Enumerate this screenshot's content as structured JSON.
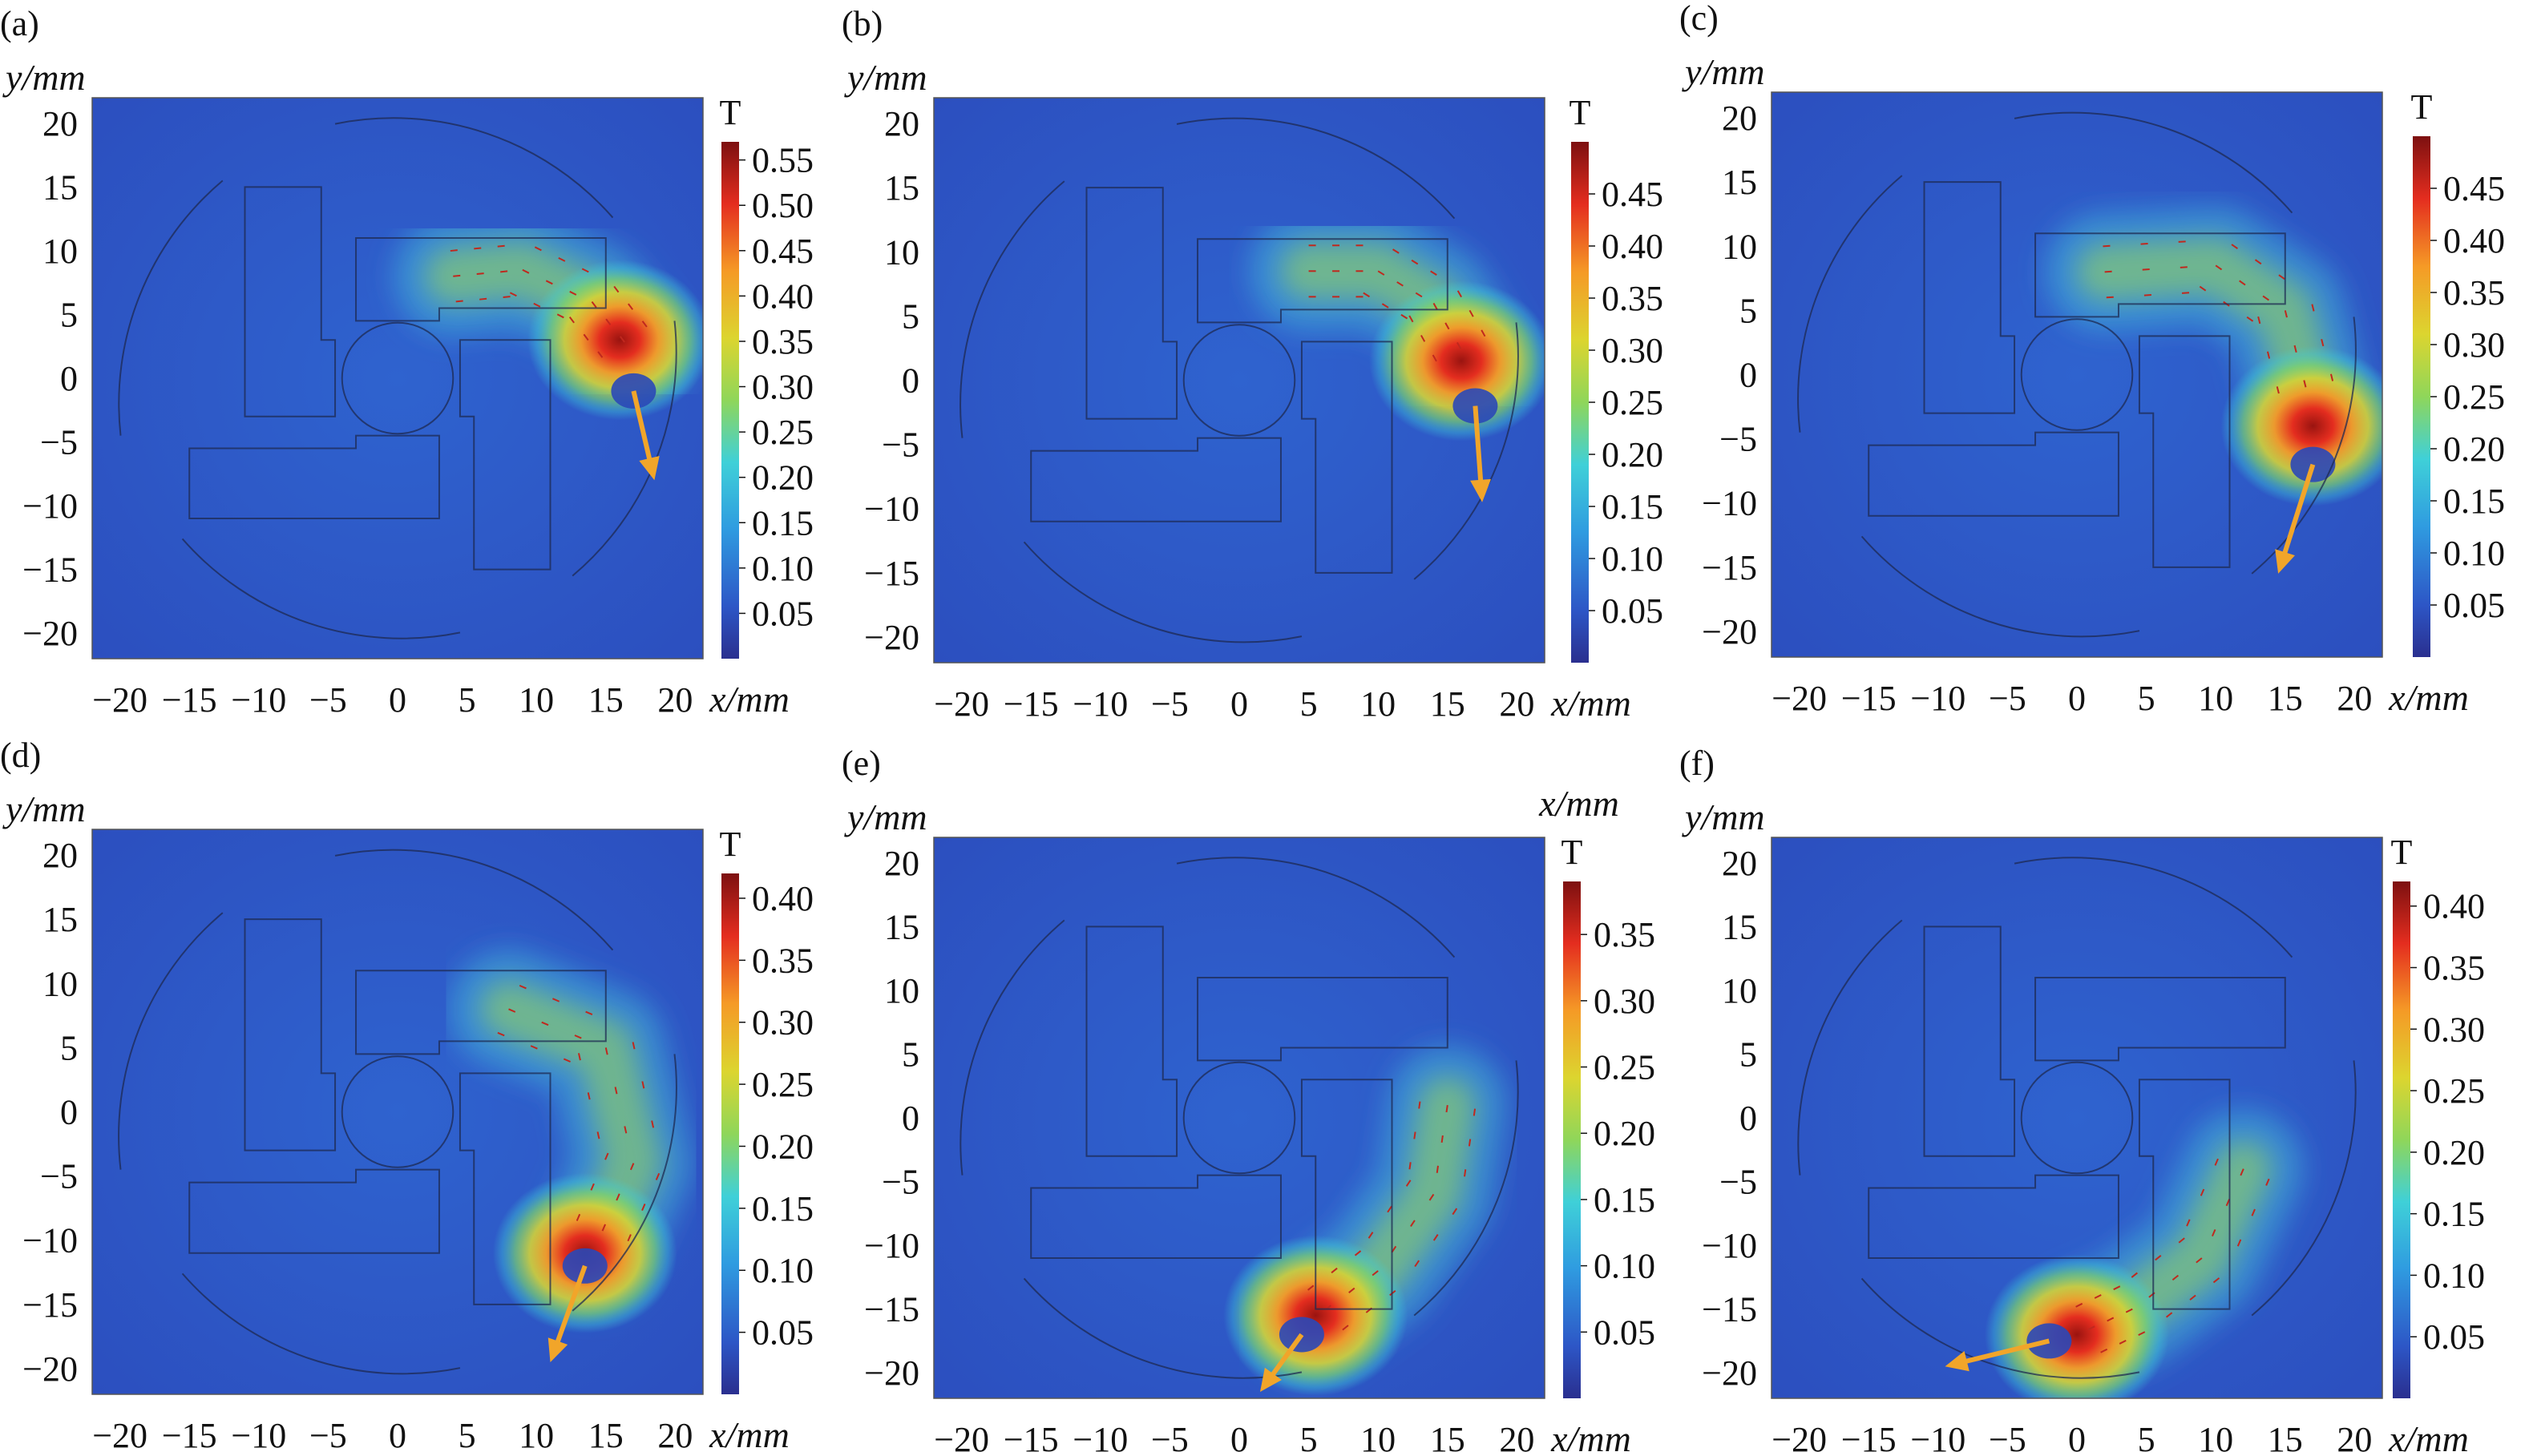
{
  "chart_data": [
    {
      "type": "heatmap",
      "panel_label": "(a)",
      "ylabel": "y/mm",
      "xlabel": "x/mm",
      "colorbar_label": "T",
      "xlim": [
        -22,
        22
      ],
      "ylim": [
        -22,
        22
      ],
      "xticks": [
        "−20",
        "−15",
        "−10",
        "−5",
        "0",
        "5",
        "10",
        "15",
        "20"
      ],
      "yticks": [
        "20",
        "15",
        "10",
        "5",
        "0",
        "−5",
        "−10",
        "−15",
        "−20"
      ],
      "colorbar_ticks": [
        "0.55",
        "0.50",
        "0.45",
        "0.40",
        "0.35",
        "0.30",
        "0.25",
        "0.20",
        "0.15",
        "0.10",
        "0.05"
      ],
      "colorbar_range": [
        0.0,
        0.57
      ],
      "hotspot": {
        "x": 16,
        "y": 3,
        "peak": 0.55
      },
      "flux_path": [
        [
          4,
          8
        ],
        [
          9,
          8.5
        ],
        [
          14,
          6
        ],
        [
          17,
          2
        ]
      ],
      "arrow": {
        "from": [
          17,
          -1
        ],
        "to": [
          18.5,
          -8
        ]
      }
    },
    {
      "type": "heatmap",
      "panel_label": "(b)",
      "ylabel": "y/mm",
      "xlabel": "x/mm",
      "colorbar_label": "T",
      "xlim": [
        -22,
        22
      ],
      "ylim": [
        -22,
        22
      ],
      "xticks": [
        "−20",
        "−15",
        "−10",
        "−5",
        "0",
        "5",
        "10",
        "15",
        "20"
      ],
      "yticks": [
        "20",
        "15",
        "10",
        "5",
        "0",
        "−5",
        "−10",
        "−15",
        "−20"
      ],
      "colorbar_ticks": [
        "0.45",
        "0.40",
        "0.35",
        "0.30",
        "0.25",
        "0.20",
        "0.15",
        "0.10",
        "0.05"
      ],
      "colorbar_range": [
        0.0,
        0.5
      ],
      "hotspot": {
        "x": 16,
        "y": 1.5,
        "peak": 0.48
      },
      "flux_path": [
        [
          5,
          8.5
        ],
        [
          10,
          8.5
        ],
        [
          14,
          6
        ],
        [
          16.5,
          1.5
        ]
      ],
      "arrow": {
        "from": [
          17,
          -2
        ],
        "to": [
          17.5,
          -9.5
        ]
      }
    },
    {
      "type": "heatmap",
      "panel_label": "(c)",
      "ylabel": "y/mm",
      "xlabel": "x/mm",
      "colorbar_label": "T",
      "xlim": [
        -22,
        22
      ],
      "ylim": [
        -22,
        22
      ],
      "xticks": [
        "−20",
        "−15",
        "−10",
        "−5",
        "0",
        "5",
        "10",
        "15",
        "20"
      ],
      "yticks": [
        "20",
        "15",
        "10",
        "5",
        "0",
        "−5",
        "−10",
        "−15",
        "−20"
      ],
      "colorbar_ticks": [
        "0.45",
        "0.40",
        "0.35",
        "0.30",
        "0.25",
        "0.20",
        "0.15",
        "0.10",
        "0.05"
      ],
      "colorbar_range": [
        0.0,
        0.5
      ],
      "hotspot": {
        "x": 17,
        "y": -4,
        "peak": 0.48
      },
      "flux_path": [
        [
          2,
          8
        ],
        [
          10,
          8.5
        ],
        [
          15,
          5
        ],
        [
          17,
          -3
        ]
      ],
      "arrow": {
        "from": [
          17,
          -7
        ],
        "to": [
          14.5,
          -15.5
        ]
      }
    },
    {
      "type": "heatmap",
      "panel_label": "(d)",
      "ylabel": "y/mm",
      "xlabel": "x/mm",
      "colorbar_label": "T",
      "xlim": [
        -22,
        22
      ],
      "ylim": [
        -22,
        22
      ],
      "xticks": [
        "−20",
        "−15",
        "−10",
        "−5",
        "0",
        "5",
        "10",
        "15",
        "20"
      ],
      "yticks": [
        "20",
        "15",
        "10",
        "5",
        "0",
        "−5",
        "−10",
        "−15",
        "−20"
      ],
      "colorbar_ticks": [
        "0.40",
        "0.35",
        "0.30",
        "0.25",
        "0.20",
        "0.15",
        "0.10",
        "0.05"
      ],
      "colorbar_range": [
        0.0,
        0.42
      ],
      "hotspot": {
        "x": 13.5,
        "y": -11,
        "peak": 0.4
      },
      "flux_path": [
        [
          8,
          8
        ],
        [
          15,
          5
        ],
        [
          17,
          -4
        ],
        [
          14,
          -11
        ]
      ],
      "arrow": {
        "from": [
          13.5,
          -12
        ],
        "to": [
          11,
          -19.5
        ]
      }
    },
    {
      "type": "heatmap",
      "panel_label": "(e)",
      "ylabel": "y/mm",
      "xlabel": "x/mm",
      "colorbar_label": "T",
      "colorbar_extra_label": "x/mm",
      "xlim": [
        -22,
        22
      ],
      "ylim": [
        -22,
        22
      ],
      "xticks": [
        "−20",
        "−15",
        "−10",
        "−5",
        "0",
        "5",
        "10",
        "15",
        "20"
      ],
      "yticks": [
        "20",
        "15",
        "10",
        "5",
        "0",
        "−5",
        "−10",
        "−15",
        "−20"
      ],
      "colorbar_ticks": [
        "0.35",
        "0.30",
        "0.25",
        "0.20",
        "0.15",
        "0.10",
        "0.05"
      ],
      "colorbar_range": [
        0.0,
        0.39
      ],
      "hotspot": {
        "x": 5.5,
        "y": -15.5,
        "peak": 0.38
      },
      "flux_path": [
        [
          15,
          1
        ],
        [
          14,
          -6
        ],
        [
          10,
          -12
        ],
        [
          5,
          -16
        ]
      ],
      "arrow": {
        "from": [
          4.5,
          -17
        ],
        "to": [
          1.5,
          -21.5
        ]
      }
    },
    {
      "type": "heatmap",
      "panel_label": "(f)",
      "ylabel": "y/mm",
      "xlabel": "x/mm",
      "colorbar_label": "T",
      "xlim": [
        -22,
        22
      ],
      "ylim": [
        -22,
        22
      ],
      "xticks": [
        "−20",
        "−15",
        "−10",
        "−5",
        "0",
        "5",
        "10",
        "15",
        "20"
      ],
      "yticks": [
        "20",
        "15",
        "10",
        "5",
        "0",
        "−5",
        "−10",
        "−15",
        "−20"
      ],
      "colorbar_ticks": [
        "0.40",
        "0.35",
        "0.30",
        "0.25",
        "0.20",
        "0.15",
        "0.10",
        "0.05"
      ],
      "colorbar_range": [
        0.0,
        0.42
      ],
      "hotspot": {
        "x": 0,
        "y": -17,
        "peak": 0.4
      },
      "flux_path": [
        [
          12,
          -4
        ],
        [
          9,
          -11
        ],
        [
          4,
          -15
        ],
        [
          0,
          -17
        ]
      ],
      "arrow": {
        "from": [
          -2,
          -17.5
        ],
        "to": [
          -9.5,
          -19.5
        ]
      }
    }
  ]
}
